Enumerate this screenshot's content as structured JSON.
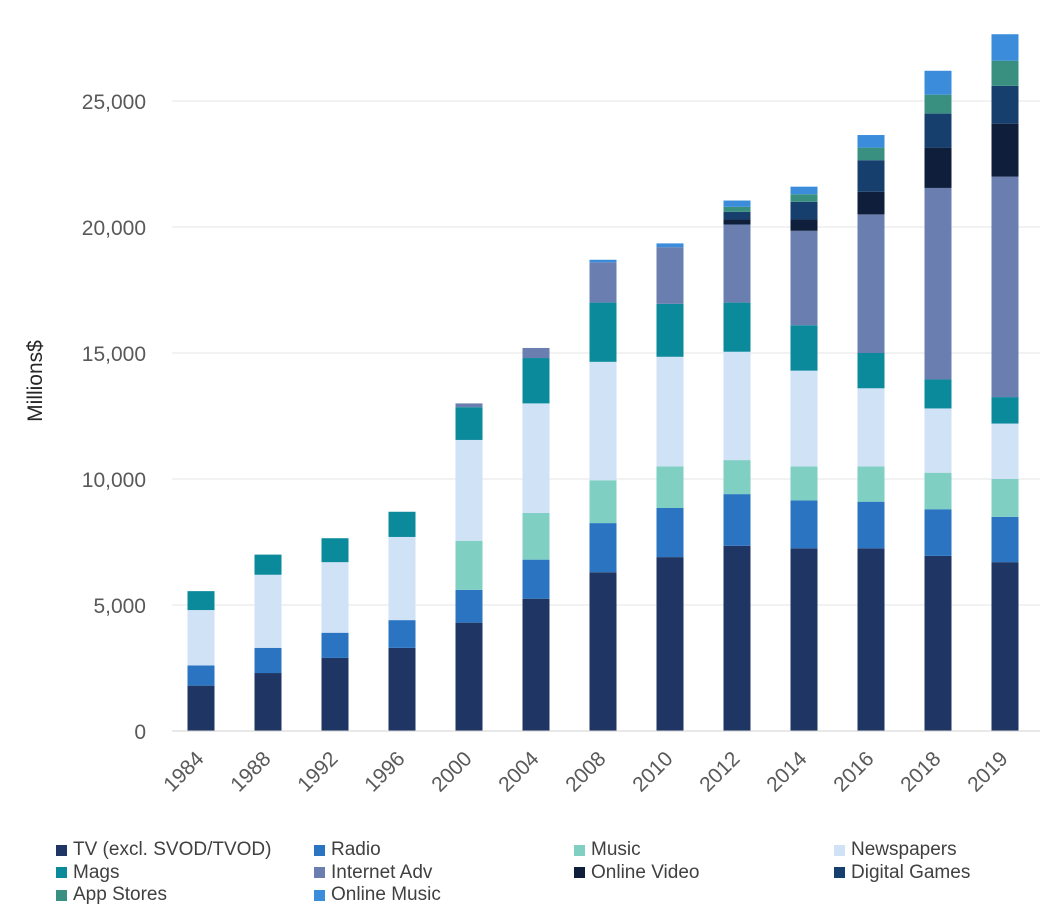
{
  "chart_data": {
    "type": "bar",
    "stacked": true,
    "ylabel": "Millions$",
    "xlabel": "",
    "ylim": [
      0,
      28000
    ],
    "yticks": [
      0,
      5000,
      10000,
      15000,
      20000,
      25000
    ],
    "ytick_labels": [
      "0",
      "5,000",
      "10,000",
      "15,000",
      "20,000",
      "25,000"
    ],
    "grid": "horizontal",
    "legend_position": "bottom",
    "categories": [
      "1984",
      "1988",
      "1992",
      "1996",
      "2000",
      "2004",
      "2008",
      "2010",
      "2012",
      "2014",
      "2016",
      "2018",
      "2019"
    ],
    "series": [
      {
        "name": "TV (excl. SVOD/TVOD)",
        "color": "#1f3563",
        "values": [
          1800,
          2300,
          2900,
          3300,
          4300,
          5250,
          6300,
          6900,
          7350,
          7250,
          7250,
          6950,
          6700
        ]
      },
      {
        "name": "Radio",
        "color": "#2a74c2",
        "values": [
          800,
          1000,
          1000,
          1100,
          1300,
          1550,
          1950,
          1950,
          2050,
          1900,
          1850,
          1850,
          1800
        ]
      },
      {
        "name": "Music",
        "color": "#7fcfc3",
        "values": [
          0,
          0,
          0,
          0,
          1950,
          1850,
          1700,
          1650,
          1350,
          1350,
          1400,
          1450,
          1500
        ]
      },
      {
        "name": "Newspapers",
        "color": "#cfe2f6",
        "values": [
          2200,
          2900,
          2800,
          3300,
          4000,
          4350,
          4700,
          4350,
          4300,
          3800,
          3100,
          2550,
          2200
        ]
      },
      {
        "name": "Mags",
        "color": "#0b8a9c",
        "values": [
          750,
          800,
          950,
          1000,
          1300,
          1800,
          2350,
          2100,
          1950,
          1800,
          1400,
          1150,
          1050
        ]
      },
      {
        "name": "Internet Adv",
        "color": "#6a7fb0",
        "values": [
          0,
          0,
          0,
          0,
          150,
          400,
          1600,
          2250,
          3100,
          3750,
          5500,
          7600,
          8750
        ]
      },
      {
        "name": "Online Video",
        "color": "#0f1e3a",
        "values": [
          0,
          0,
          0,
          0,
          0,
          0,
          0,
          0,
          200,
          450,
          900,
          1600,
          2100
        ]
      },
      {
        "name": "Digital Games",
        "color": "#173f6e",
        "values": [
          0,
          0,
          0,
          0,
          0,
          0,
          0,
          0,
          300,
          700,
          1250,
          1350,
          1500
        ]
      },
      {
        "name": "App Stores",
        "color": "#3a9080",
        "values": [
          0,
          0,
          0,
          0,
          0,
          0,
          0,
          0,
          200,
          300,
          500,
          750,
          1000
        ]
      },
      {
        "name": "Online Music",
        "color": "#3b8ddb",
        "values": [
          0,
          0,
          0,
          0,
          0,
          0,
          100,
          150,
          250,
          300,
          500,
          950,
          1050
        ]
      }
    ]
  }
}
